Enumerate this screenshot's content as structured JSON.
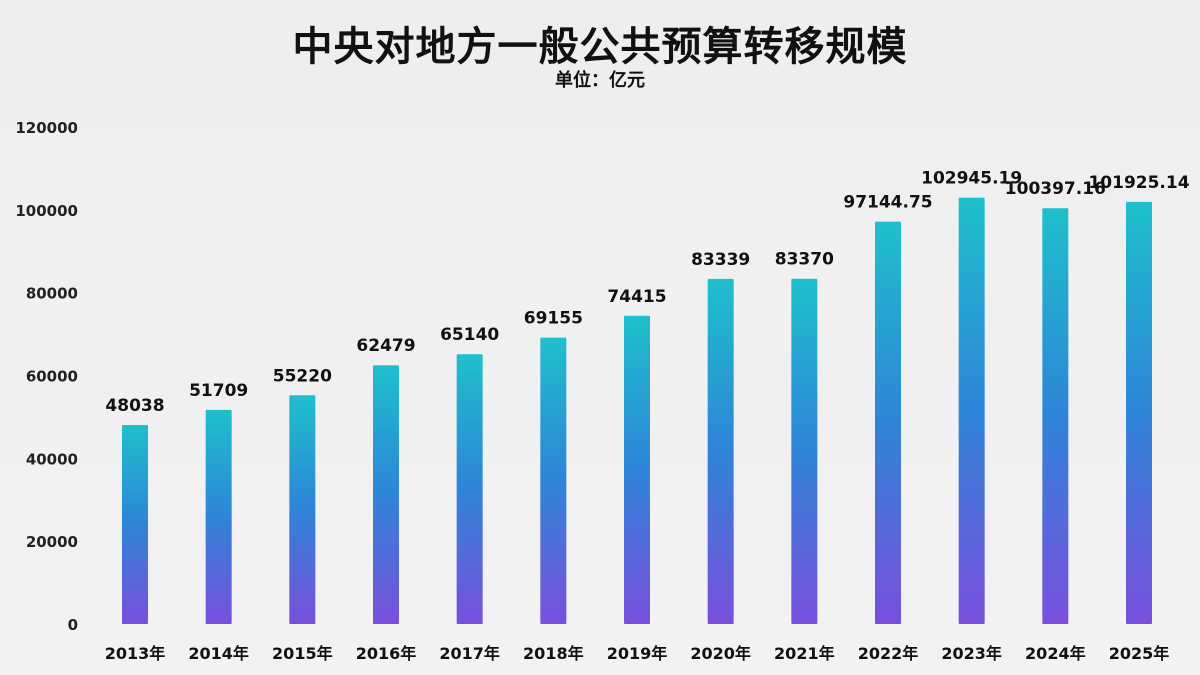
{
  "chart_data": {
    "type": "bar",
    "title": "中央对地方一般公共预算转移规模",
    "subtitle": "单位：亿元",
    "xlabel": "",
    "ylabel": "",
    "ylim": [
      0,
      120000
    ],
    "yticks": [
      0,
      20000,
      40000,
      60000,
      80000,
      100000,
      120000
    ],
    "ytick_labels": [
      "0",
      "20000",
      "40000",
      "60000",
      "80000",
      "100000",
      "120000"
    ],
    "grid": false,
    "legend": "none",
    "categories": [
      "2013年",
      "2014年",
      "2015年",
      "2016年",
      "2017年",
      "2018年",
      "2019年",
      "2020年",
      "2021年",
      "2022年",
      "2023年",
      "2024年",
      "2025年"
    ],
    "values": [
      48038,
      51709,
      55220,
      62479,
      65140,
      69155,
      74415,
      83339,
      83370,
      97144.75,
      102945.19,
      100397.16,
      101925.14
    ],
    "data_labels": [
      "48038",
      "51709",
      "55220",
      "62479",
      "65140",
      "69155",
      "74415",
      "83339",
      "83370",
      "97144.75",
      "102945.19",
      "100397.16",
      "101925.14"
    ],
    "colors": {
      "bar_top": "#1ec0cc",
      "bar_mid": "#2e84d8",
      "bar_bottom": "#7a4fdc"
    }
  }
}
